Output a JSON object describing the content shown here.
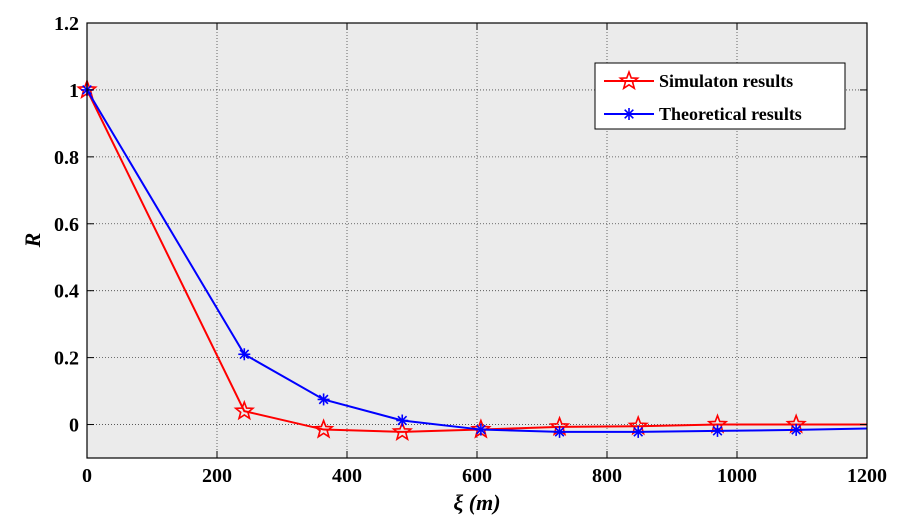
{
  "chart_data": {
    "type": "line",
    "title": "",
    "xlabel": "ξ (m)",
    "ylabel": "R",
    "xlim": [
      0,
      1200
    ],
    "ylim": [
      -0.1,
      1.2
    ],
    "xticks": [
      "0",
      "200",
      "400",
      "600",
      "800",
      "1000",
      "1200"
    ],
    "yticks": [
      "0",
      "0.2",
      "0.4",
      "0.6",
      "0.8",
      "1",
      "1.2"
    ],
    "grid": true,
    "plot_background": "#ebebeb",
    "legend_position": "top-right",
    "series": [
      {
        "name": "Simulaton results",
        "color": "#ff0000",
        "marker": "pentagram",
        "x": [
          0,
          242,
          364,
          485,
          606,
          727,
          848,
          970,
          1091,
          1200
        ],
        "y": [
          1.0,
          0.04,
          -0.015,
          -0.022,
          -0.015,
          -0.007,
          -0.005,
          0.0,
          0.0,
          0.0
        ]
      },
      {
        "name": "Theoretical results",
        "color": "#0000ff",
        "marker": "asterisk",
        "x": [
          0,
          242,
          364,
          485,
          606,
          727,
          848,
          970,
          1091,
          1200
        ],
        "y": [
          1.0,
          0.21,
          0.075,
          0.012,
          -0.015,
          -0.022,
          -0.022,
          -0.019,
          -0.016,
          -0.012
        ]
      }
    ]
  }
}
